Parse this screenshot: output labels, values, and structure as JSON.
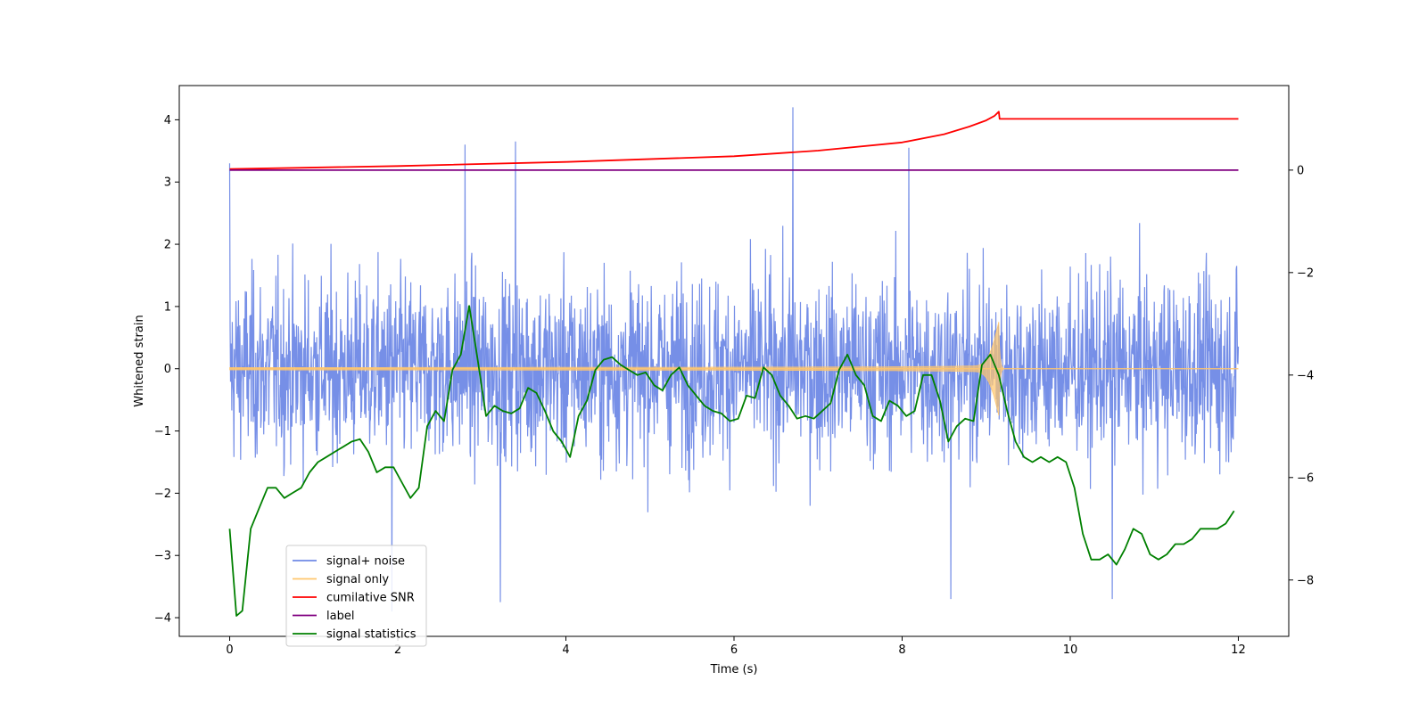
{
  "chart_data": {
    "type": "line",
    "title": "",
    "xlabel": "Time (s)",
    "ylabel": "Whitened strain",
    "xlim": [
      -0.6,
      12.6
    ],
    "ylim": [
      -4.3,
      4.55
    ],
    "y2lim": [
      -9.1,
      1.65
    ],
    "x_ticks": [
      0,
      2,
      4,
      6,
      8,
      10,
      12
    ],
    "y_ticks": [
      -4,
      -3,
      -2,
      -1,
      0,
      1,
      2,
      3,
      4
    ],
    "y2_ticks": [
      -8,
      -6,
      -4,
      -2,
      0
    ],
    "legend_position": "lower-left",
    "series": [
      {
        "name": "signal+ noise",
        "axis": "left",
        "color": "#6f89e6",
        "style": "noise",
        "x_range": [
          0,
          12
        ],
        "typical_amplitude": 1.3,
        "notable_spikes": [
          {
            "x": 0.0,
            "y": 3.3
          },
          {
            "x": 2.8,
            "y": 3.6
          },
          {
            "x": 3.4,
            "y": 3.65
          },
          {
            "x": 6.7,
            "y": 4.2
          },
          {
            "x": 8.08,
            "y": 3.55
          },
          {
            "x": 3.22,
            "y": -3.75
          },
          {
            "x": 8.58,
            "y": -3.7
          },
          {
            "x": 1.93,
            "y": -3.9
          },
          {
            "x": 10.5,
            "y": -3.7
          }
        ]
      },
      {
        "name": "signal only",
        "axis": "left",
        "color": "#ffc66e",
        "style": "chirp",
        "chirp_merger_time": 9.15,
        "chirp_peak_amplitude": 0.78,
        "chirp_start_amplitude": 0.02
      },
      {
        "name": "cumilative SNR",
        "axis": "right",
        "color": "#ff0000",
        "style": "line",
        "x": [
          0,
          2,
          4,
          6,
          7,
          8,
          8.5,
          8.8,
          9.0,
          9.1,
          9.15,
          9.16,
          12
        ],
        "y": [
          0.02,
          0.08,
          0.16,
          0.27,
          0.38,
          0.54,
          0.7,
          0.85,
          0.97,
          1.06,
          1.14,
          1.0,
          1.0
        ]
      },
      {
        "name": "label",
        "axis": "right",
        "color": "#800080",
        "style": "line",
        "x": [
          0,
          12
        ],
        "y": [
          0,
          0
        ]
      },
      {
        "name": "signal statistics",
        "axis": "right",
        "color": "#008000",
        "style": "line",
        "x": [
          0.0,
          0.08,
          0.15,
          0.25,
          0.35,
          0.45,
          0.55,
          0.65,
          0.75,
          0.85,
          0.95,
          1.05,
          1.15,
          1.25,
          1.35,
          1.45,
          1.55,
          1.65,
          1.75,
          1.85,
          1.95,
          2.05,
          2.15,
          2.25,
          2.35,
          2.45,
          2.55,
          2.65,
          2.75,
          2.85,
          2.95,
          3.05,
          3.15,
          3.25,
          3.35,
          3.45,
          3.55,
          3.65,
          3.75,
          3.85,
          3.95,
          4.05,
          4.15,
          4.25,
          4.35,
          4.45,
          4.55,
          4.65,
          4.75,
          4.85,
          4.95,
          5.05,
          5.15,
          5.25,
          5.35,
          5.45,
          5.55,
          5.65,
          5.75,
          5.85,
          5.95,
          6.05,
          6.15,
          6.25,
          6.35,
          6.45,
          6.55,
          6.65,
          6.75,
          6.85,
          6.95,
          7.05,
          7.15,
          7.25,
          7.35,
          7.45,
          7.55,
          7.65,
          7.75,
          7.85,
          7.95,
          8.05,
          8.15,
          8.25,
          8.35,
          8.45,
          8.55,
          8.65,
          8.75,
          8.85,
          8.95,
          9.05,
          9.15,
          9.25,
          9.35,
          9.45,
          9.55,
          9.65,
          9.75,
          9.85,
          9.95,
          10.05,
          10.15,
          10.25,
          10.35,
          10.45,
          10.55,
          10.65,
          10.75,
          10.85,
          10.95,
          11.05,
          11.15,
          11.25,
          11.35,
          11.45,
          11.55,
          11.65,
          11.75,
          11.85,
          11.95
        ],
        "y": [
          -7.0,
          -8.7,
          -8.6,
          -7.0,
          -6.6,
          -6.2,
          -6.2,
          -6.4,
          -6.3,
          -6.2,
          -5.9,
          -5.7,
          -5.6,
          -5.5,
          -5.4,
          -5.3,
          -5.25,
          -5.5,
          -5.9,
          -5.8,
          -5.8,
          -6.1,
          -6.4,
          -6.2,
          -5.0,
          -4.7,
          -4.9,
          -3.9,
          -3.6,
          -2.65,
          -3.7,
          -4.8,
          -4.6,
          -4.7,
          -4.75,
          -4.65,
          -4.25,
          -4.35,
          -4.7,
          -5.1,
          -5.3,
          -5.6,
          -4.8,
          -4.5,
          -3.9,
          -3.7,
          -3.65,
          -3.8,
          -3.9,
          -4.0,
          -3.95,
          -4.2,
          -4.3,
          -4.0,
          -3.85,
          -4.2,
          -4.4,
          -4.6,
          -4.7,
          -4.75,
          -4.9,
          -4.85,
          -4.4,
          -4.45,
          -3.85,
          -4.0,
          -4.4,
          -4.6,
          -4.85,
          -4.8,
          -4.85,
          -4.7,
          -4.55,
          -3.9,
          -3.6,
          -4.0,
          -4.2,
          -4.8,
          -4.9,
          -4.5,
          -4.6,
          -4.8,
          -4.7,
          -4.0,
          -4.0,
          -4.5,
          -5.3,
          -5.0,
          -4.85,
          -4.9,
          -3.8,
          -3.6,
          -4.0,
          -4.7,
          -5.3,
          -5.6,
          -5.7,
          -5.6,
          -5.7,
          -5.6,
          -5.7,
          -6.2,
          -7.1,
          -7.6,
          -7.6,
          -7.5,
          -7.7,
          -7.4,
          -7.0,
          -7.1,
          -7.5,
          -7.6,
          -7.5,
          -7.3,
          -7.3,
          -7.2,
          -7.0,
          -7.0,
          -7.0,
          -6.9,
          -6.65
        ]
      }
    ]
  }
}
